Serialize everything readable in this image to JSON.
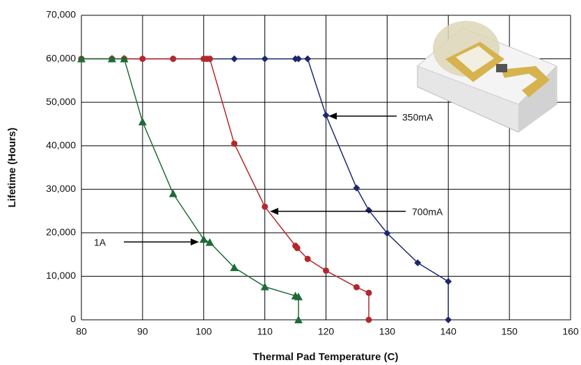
{
  "chart_data": {
    "type": "line",
    "xlabel": "Thermal Pad Temperature (C)",
    "ylabel": "Lifetime (Hours)",
    "xlim": [
      80,
      160
    ],
    "xticks": [
      80,
      90,
      100,
      110,
      120,
      130,
      140,
      150,
      160
    ],
    "ylim": [
      0,
      70000
    ],
    "yticks": [
      0,
      {
        "value": 10000,
        "label": "10,000"
      },
      {
        "value": 20000,
        "label": "20,000"
      },
      {
        "value": 30000,
        "label": "30,000"
      },
      {
        "value": 40000,
        "label": "40,000"
      },
      {
        "value": 50000,
        "label": "50,000"
      },
      {
        "value": 60000,
        "label": "60,000"
      },
      {
        "value": 70000,
        "label": "70,000"
      }
    ],
    "grid": true,
    "series": [
      {
        "name": "350mA",
        "color": "#1c2770",
        "marker": "diamond",
        "x": [
          80,
          85,
          90,
          95,
          100,
          101,
          105,
          110,
          115,
          115.5,
          117,
          120,
          125,
          127,
          130,
          135,
          140,
          140
        ],
        "values": [
          60000,
          60000,
          60000,
          60000,
          60000,
          60000,
          60000,
          60000,
          60000,
          60000,
          60000,
          47000,
          30300,
          25200,
          19900,
          13100,
          8800,
          0
        ]
      },
      {
        "name": "700mA",
        "color": "#b3282d",
        "marker": "circle",
        "x": [
          80,
          85,
          87,
          90,
          95,
          100,
          100.5,
          101,
          105,
          110,
          115,
          115.3,
          117,
          120,
          125,
          127,
          127
        ],
        "values": [
          60000,
          60000,
          60000,
          60000,
          60000,
          60000,
          60000,
          60000,
          40500,
          26000,
          17000,
          16500,
          14000,
          11300,
          7500,
          6200,
          0
        ]
      },
      {
        "name": "1A",
        "color": "#1e6b36",
        "marker": "triangle",
        "x": [
          80,
          85,
          87,
          90,
          95,
          100,
          101,
          105,
          110,
          115,
          115.5,
          115.5
        ],
        "values": [
          60000,
          60000,
          60000,
          45500,
          29000,
          18500,
          17800,
          12000,
          7600,
          5500,
          5300,
          0
        ]
      }
    ]
  }
}
